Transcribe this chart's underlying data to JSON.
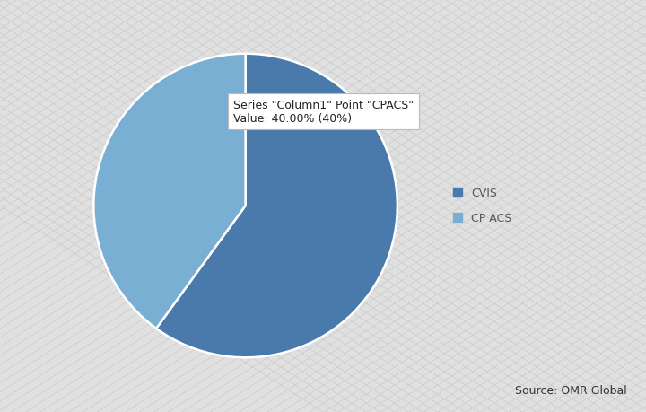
{
  "labels": [
    "CVIS",
    "CPACS"
  ],
  "values": [
    60,
    40
  ],
  "colors": [
    "#4a7aab",
    "#7aafd4"
  ],
  "explode": [
    0,
    0
  ],
  "legend_labels": [
    "CVIS",
    "CP ACS"
  ],
  "legend_colors": [
    "#4a7aab",
    "#7aafd4"
  ],
  "tooltip_line1": "Series \"Column1\" Point \"CPACS\"",
  "tooltip_line2": "Value: 40.00% (40%)",
  "source_text": "Source: OMR Global",
  "background_color": "#e0e0e0",
  "startangle": 90
}
